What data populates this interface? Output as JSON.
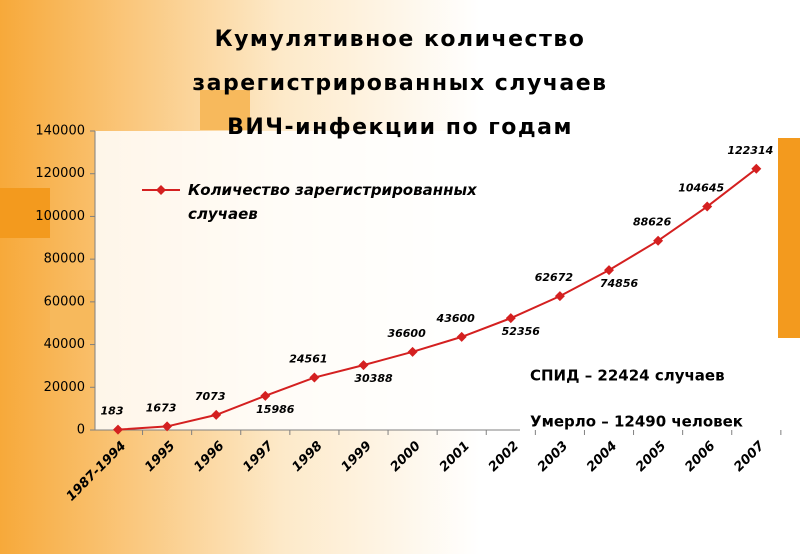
{
  "chart_data": {
    "type": "line",
    "title": [
      "Кумулятивное количество",
      "зарегистрированных случаев",
      "ВИЧ-инфекции по годам"
    ],
    "categories": [
      "1987-1994",
      "1995",
      "1996",
      "1997",
      "1998",
      "1999",
      "2000",
      "2001",
      "2002",
      "2003",
      "2004",
      "2005",
      "2006",
      "2007"
    ],
    "series": [
      {
        "name": "Количество зарегистрированных случаев",
        "color": "#d42020",
        "values": [
          183,
          1673,
          7073,
          15986,
          24561,
          30388,
          36600,
          43600,
          52356,
          62672,
          74856,
          88626,
          104645,
          122314
        ]
      }
    ],
    "ylim": [
      0,
      140000
    ],
    "yticks": [
      0,
      20000,
      40000,
      60000,
      80000,
      100000,
      120000,
      140000
    ],
    "annotations": [
      "СПИД – 22424 случаев",
      "Умерло – 12490 человек"
    ],
    "grid": false,
    "legend": "top-left"
  }
}
